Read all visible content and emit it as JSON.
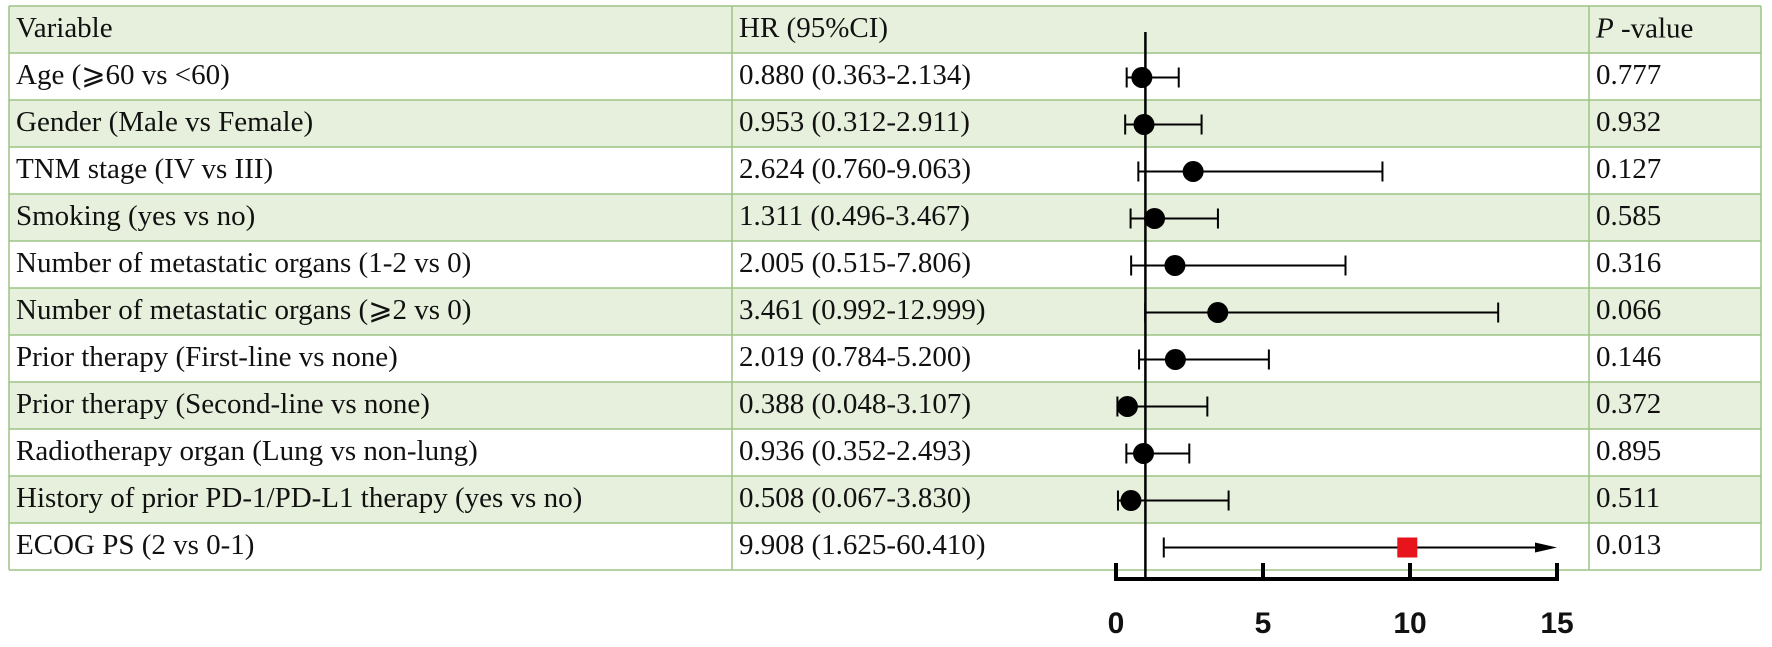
{
  "chart_data": {
    "type": "forest",
    "header": {
      "variable": "Variable",
      "hr": "HR (95%CI)",
      "p_italic": "P",
      "p_rest": " -value"
    },
    "rows": [
      {
        "variable": "Age (⩾60 vs <60)",
        "hr": 0.88,
        "lo": 0.363,
        "hi": 2.134,
        "hr_label": "0.880 (0.363-2.134)",
        "p": "0.777"
      },
      {
        "variable": "Gender (Male vs Female)",
        "hr": 0.953,
        "lo": 0.312,
        "hi": 2.911,
        "hr_label": "0.953 (0.312-2.911)",
        "p": "0.932"
      },
      {
        "variable": "TNM stage (IV vs III)",
        "hr": 2.624,
        "lo": 0.76,
        "hi": 9.063,
        "hr_label": "2.624 (0.760-9.063)",
        "p": "0.127"
      },
      {
        "variable": "Smoking (yes vs no)",
        "hr": 1.311,
        "lo": 0.496,
        "hi": 3.467,
        "hr_label": "1.311 (0.496-3.467)",
        "p": "0.585"
      },
      {
        "variable": "Number of metastatic organs (1-2 vs 0)",
        "hr": 2.005,
        "lo": 0.515,
        "hi": 7.806,
        "hr_label": "2.005 (0.515-7.806)",
        "p": "0.316"
      },
      {
        "variable": "Number of metastatic organs (⩾2 vs 0)",
        "hr": 3.461,
        "lo": 0.992,
        "hi": 12.999,
        "hr_label": "3.461 (0.992-12.999)",
        "p": "0.066"
      },
      {
        "variable": "Prior therapy (First-line vs none)",
        "hr": 2.019,
        "lo": 0.784,
        "hi": 5.2,
        "hr_label": "2.019 (0.784-5.200)",
        "p": "0.146"
      },
      {
        "variable": "Prior therapy (Second-line vs none)",
        "hr": 0.388,
        "lo": 0.048,
        "hi": 3.107,
        "hr_label": "0.388 (0.048-3.107)",
        "p": "0.372"
      },
      {
        "variable": "Radiotherapy organ (Lung vs non-lung)",
        "hr": 0.936,
        "lo": 0.352,
        "hi": 2.493,
        "hr_label": "0.936 (0.352-2.493)",
        "p": "0.895"
      },
      {
        "variable": "History of prior PD-1/PD-L1 therapy (yes vs no)",
        "hr": 0.508,
        "lo": 0.067,
        "hi": 3.83,
        "hr_label": "0.508 (0.067-3.830)",
        "p": "0.511"
      },
      {
        "variable": "ECOG PS (2 vs 0-1)",
        "hr": 9.908,
        "lo": 1.625,
        "hi": 60.41,
        "hr_label": "9.908 (1.625-60.410)",
        "p": "0.013",
        "color": "#e8141b",
        "marker": "square"
      }
    ],
    "color": "#000000",
    "marker": "circle",
    "reference": 1,
    "xlim": [
      0,
      15
    ],
    "xticks": [
      0,
      5,
      10,
      15
    ]
  }
}
